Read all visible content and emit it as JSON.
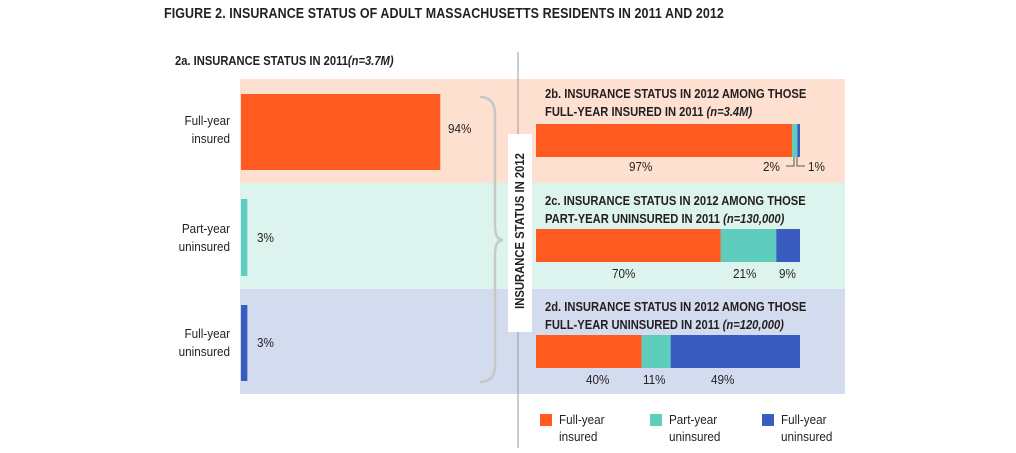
{
  "figure_title": "FIGURE 2. INSURANCE STATUS OF ADULT MASSACHUSETTS RESIDENTS IN 2011 AND 2012",
  "side_label": "INSURANCE STATUS IN 2012",
  "colors": {
    "full_year_insured": "#ff5a1f",
    "part_year_uninsured": "#5fcdbd",
    "full_year_uninsured": "#3a5bbf",
    "band_insured": "#fde0d0",
    "band_part": "#dcf3ee",
    "band_uninsured": "#d3dbee"
  },
  "chart_data": [
    {
      "type": "bar",
      "title": "2a. INSURANCE STATUS IN 2011",
      "title_n": "(n=3.7M)",
      "categories": [
        "Full-year insured",
        "Part-year uninsured",
        "Full-year uninsured"
      ],
      "category_lines": [
        [
          "Full-year",
          "insured"
        ],
        [
          "Part-year",
          "uninsured"
        ],
        [
          "Full-year",
          "uninsured"
        ]
      ],
      "values": [
        94,
        3,
        3
      ],
      "labels": [
        "94%",
        "3%",
        "3%"
      ]
    },
    {
      "type": "bar",
      "stacked": true,
      "title_lines": [
        "2b. INSURANCE STATUS IN 2012 AMONG THOSE",
        "FULL-YEAR INSURED IN 2011 "
      ],
      "title_n": "(n=3.4M)",
      "series": [
        {
          "name": "Full-year insured",
          "value": 97,
          "label": "97%"
        },
        {
          "name": "Part-year uninsured",
          "value": 2,
          "label": "2%"
        },
        {
          "name": "Full-year uninsured",
          "value": 1,
          "label": "1%"
        }
      ]
    },
    {
      "type": "bar",
      "stacked": true,
      "title_lines": [
        "2c. INSURANCE STATUS IN 2012 AMONG THOSE",
        "PART-YEAR UNINSURED IN 2011 "
      ],
      "title_n": "(n=130,000)",
      "series": [
        {
          "name": "Full-year insured",
          "value": 70,
          "label": "70%"
        },
        {
          "name": "Part-year uninsured",
          "value": 21,
          "label": "21%"
        },
        {
          "name": "Full-year uninsured",
          "value": 9,
          "label": "9%"
        }
      ]
    },
    {
      "type": "bar",
      "stacked": true,
      "title_lines": [
        "2d. INSURANCE STATUS IN 2012 AMONG THOSE",
        "FULL-YEAR UNINSURED IN 2011 "
      ],
      "title_n": "(n=120,000)",
      "series": [
        {
          "name": "Full-year insured",
          "value": 40,
          "label": "40%"
        },
        {
          "name": "Part-year uninsured",
          "value": 11,
          "label": "11%"
        },
        {
          "name": "Full-year uninsured",
          "value": 49,
          "label": "49%"
        }
      ]
    }
  ],
  "legend": [
    {
      "lines": [
        "Full-year",
        "insured"
      ],
      "color_key": "full_year_insured"
    },
    {
      "lines": [
        "Part-year",
        "uninsured"
      ],
      "color_key": "part_year_uninsured"
    },
    {
      "lines": [
        "Full-year",
        "uninsured"
      ],
      "color_key": "full_year_uninsured"
    }
  ]
}
